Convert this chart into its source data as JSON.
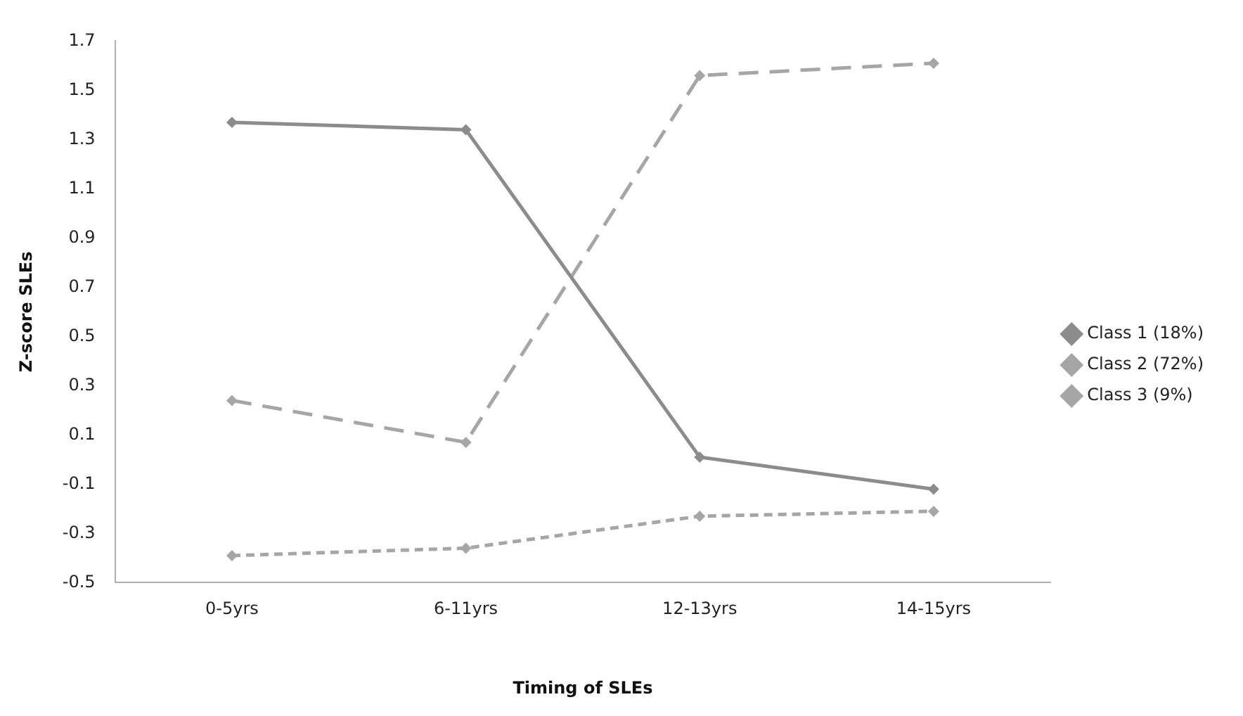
{
  "chart_data": {
    "type": "line",
    "xlabel": "Timing of SLEs",
    "ylabel": "Z-score SLEs",
    "categories": [
      "0-5yrs",
      "6-11yrs",
      "12-13yrs",
      "14-15yrs"
    ],
    "series": [
      {
        "name": "Class 1 (18%)",
        "color": "#8c8c8c",
        "line_style": "solid",
        "values": [
          1.37,
          1.34,
          0.01,
          -0.12
        ]
      },
      {
        "name": "Class 2 (72%)",
        "color": "#a6a6a6",
        "line_style": "dashed",
        "values": [
          -0.39,
          -0.36,
          -0.23,
          -0.21
        ]
      },
      {
        "name": "Class 3 (9%)",
        "color": "#a6a6a6",
        "line_style": "longdash",
        "values": [
          0.24,
          0.07,
          1.56,
          1.61
        ]
      }
    ],
    "ylim": [
      -0.5,
      1.7
    ],
    "yticks": [
      -0.5,
      -0.3,
      -0.1,
      0.1,
      0.3,
      0.5,
      0.7,
      0.9,
      1.1,
      1.3,
      1.5,
      1.7
    ],
    "grid": false,
    "legend": "right",
    "marker": "diamond"
  }
}
